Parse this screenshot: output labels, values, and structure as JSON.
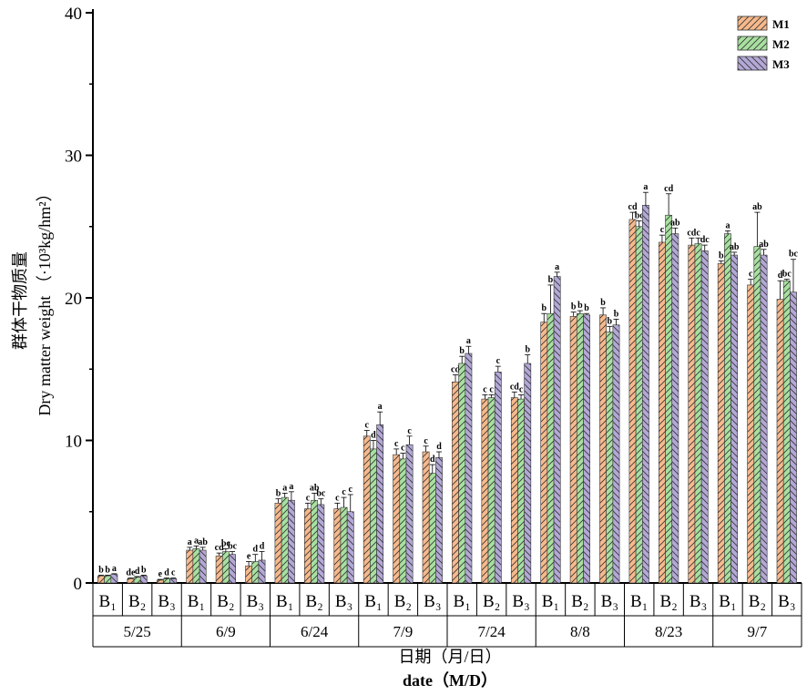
{
  "chart_data": {
    "type": "bar",
    "ylabel_cn": "群体干物质量",
    "ylabel_en": "Dry matter weight （·10³kg/hm²）",
    "xlabel_cn": "日期（月/日）",
    "xlabel_en": "date（M/D）",
    "ylim": [
      0,
      40
    ],
    "yticks": [
      "0",
      "10",
      "20",
      "30",
      "40"
    ],
    "dates": [
      "5/25",
      "6/9",
      "6/24",
      "7/9",
      "7/24",
      "8/8",
      "8/23",
      "9/7"
    ],
    "groups": [
      "B₁",
      "B₂",
      "B₃"
    ],
    "legend_position": "top-right",
    "series": [
      {
        "name": "M1",
        "color": "#f7b98c",
        "pattern": "diag-up"
      },
      {
        "name": "M2",
        "color": "#a8e0a0",
        "pattern": "diag-up"
      },
      {
        "name": "M3",
        "color": "#b3a8d6",
        "pattern": "diag-down"
      }
    ],
    "values": [
      [
        [
          0.5,
          0.5,
          0.6
        ],
        [
          0.3,
          0.4,
          0.5
        ],
        [
          0.2,
          0.3,
          0.3
        ]
      ],
      [
        [
          2.3,
          2.4,
          2.3
        ],
        [
          1.9,
          2.2,
          2.0
        ],
        [
          1.2,
          1.5,
          1.6
        ]
      ],
      [
        [
          5.6,
          6.0,
          5.8
        ],
        [
          5.2,
          5.8,
          5.5
        ],
        [
          5.2,
          5.3,
          5.0
        ]
      ],
      [
        [
          10.3,
          9.4,
          11.1
        ],
        [
          9.0,
          8.7,
          9.7
        ],
        [
          9.2,
          7.7,
          8.8
        ]
      ],
      [
        [
          14.1,
          15.4,
          16.1
        ],
        [
          12.9,
          13.0,
          14.8
        ],
        [
          13.0,
          12.9,
          15.4
        ]
      ],
      [
        [
          18.3,
          18.9,
          21.5
        ],
        [
          18.7,
          18.9,
          18.8
        ],
        [
          18.8,
          17.6,
          18.1
        ]
      ],
      [
        [
          25.5,
          25.0,
          26.5
        ],
        [
          23.9,
          25.8,
          24.5
        ],
        [
          23.7,
          23.8,
          23.3
        ]
      ],
      [
        [
          22.4,
          24.5,
          23.0
        ],
        [
          20.9,
          23.6,
          23.0
        ],
        [
          19.9,
          21.2,
          20.4
        ]
      ]
    ],
    "errors": [
      [
        [
          0.05,
          0.05,
          0.05
        ],
        [
          0.05,
          0.05,
          0.05
        ],
        [
          0.05,
          0.05,
          0.05
        ]
      ],
      [
        [
          0.2,
          0.2,
          0.2
        ],
        [
          0.2,
          0.2,
          0.2
        ],
        [
          0.3,
          0.5,
          0.6
        ]
      ],
      [
        [
          0.3,
          0.3,
          0.6
        ],
        [
          0.4,
          0.5,
          0.4
        ],
        [
          0.4,
          0.7,
          1.2
        ]
      ],
      [
        [
          0.4,
          0.6,
          0.9
        ],
        [
          0.4,
          0.4,
          0.6
        ],
        [
          0.4,
          0.6,
          0.4
        ]
      ],
      [
        [
          0.5,
          0.5,
          0.5
        ],
        [
          0.3,
          0.2,
          0.4
        ],
        [
          0.4,
          0.3,
          0.6
        ]
      ],
      [
        [
          0.6,
          2.0,
          0.3
        ],
        [
          0.3,
          0.2,
          0.1
        ],
        [
          0.5,
          0.4,
          0.4
        ]
      ],
      [
        [
          0.5,
          0.4,
          0.9
        ],
        [
          0.5,
          1.5,
          0.4
        ],
        [
          0.5,
          0.4,
          0.4
        ]
      ],
      [
        [
          0.2,
          0.2,
          0.2
        ],
        [
          0.4,
          2.4,
          0.4
        ],
        [
          1.3,
          0.1,
          2.3
        ]
      ]
    ],
    "letters": [
      [
        [
          "b",
          "b",
          "a"
        ],
        [
          "de",
          "d",
          "b"
        ],
        [
          "e",
          "d",
          "c"
        ]
      ],
      [
        [
          "a",
          "a",
          "ab"
        ],
        [
          "cd",
          "bc",
          "bc"
        ],
        [
          "e",
          "d",
          "d"
        ]
      ],
      [
        [
          "b",
          "a",
          "a"
        ],
        [
          "c",
          "ab",
          "bc"
        ],
        [
          "c",
          "c",
          "c"
        ]
      ],
      [
        [
          "c",
          "d",
          "a"
        ],
        [
          "c",
          "c",
          "c"
        ],
        [
          "c",
          "d",
          "d"
        ]
      ],
      [
        [
          "cd",
          "b",
          "a"
        ],
        [
          "c",
          "c",
          "c"
        ],
        [
          "cd",
          "c",
          "b"
        ]
      ],
      [
        [
          "b",
          "b",
          "a"
        ],
        [
          "b",
          "b",
          "b"
        ],
        [
          "b",
          "b",
          "b"
        ]
      ],
      [
        [
          "cd",
          "bc",
          "a"
        ],
        [
          "c",
          "cd",
          "ab"
        ],
        [
          "cd",
          "c",
          "dc"
        ]
      ],
      [
        [
          "b",
          "a",
          "ab"
        ],
        [
          "c",
          "ab",
          "ab"
        ],
        [
          "d",
          "bc",
          "bc"
        ]
      ]
    ]
  }
}
